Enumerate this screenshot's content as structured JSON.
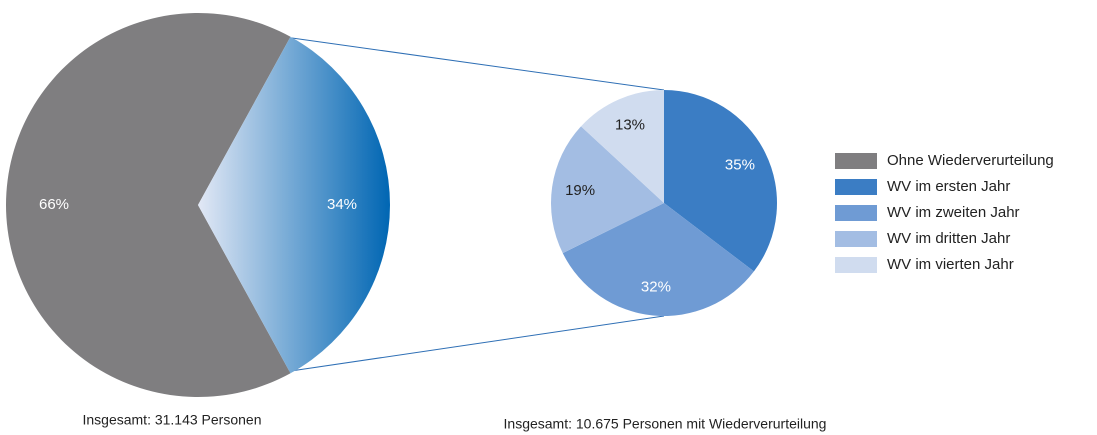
{
  "chart_data": [
    {
      "type": "pie",
      "categories": [
        "Ohne Wiederverurteilung",
        null
      ],
      "values": [
        66,
        34
      ],
      "value_labels": [
        "66%",
        "34%"
      ],
      "colors": [
        "#7f7e80",
        "#0066b3"
      ],
      "label_colors": [
        "#ffffff",
        "#ffffff"
      ],
      "gradient": [
        false,
        true
      ],
      "start_angle": 151.2,
      "subtitle": "Insgesamt: 31.143 Personen"
    },
    {
      "type": "pie",
      "categories": [
        "WV im ersten Jahr",
        "WV im zweiten Jahr",
        "WV im dritten Jahr",
        "WV im vierten Jahr"
      ],
      "values": [
        35,
        32,
        19,
        13
      ],
      "value_labels": [
        "35%",
        "32%",
        "19%",
        "13%"
      ],
      "colors": [
        "#3b7dc4",
        "#6f9bd4",
        "#a3bde3",
        "#d0dcef"
      ],
      "label_colors": [
        "#ffffff",
        "#ffffff",
        "#222222",
        "#222222"
      ],
      "gradient": [
        false,
        false,
        false,
        false
      ],
      "start_angle": 0,
      "subtitle": "Insgesamt: 10.675 Personen mit Wiederverurteilung"
    }
  ]
}
